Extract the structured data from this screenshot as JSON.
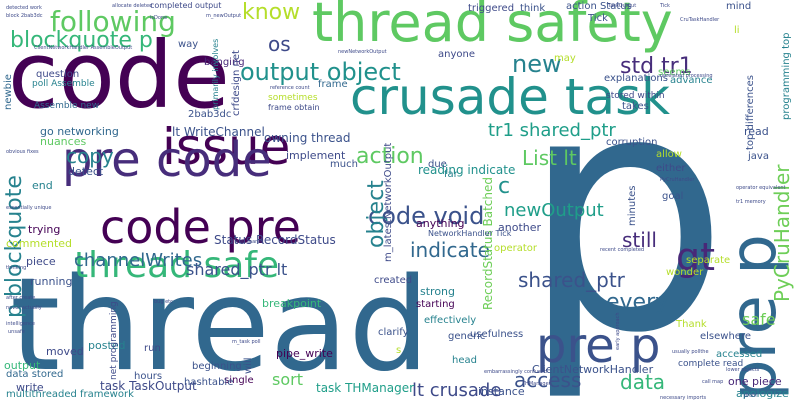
{
  "words": [
    {
      "id": "w-code",
      "text": "code",
      "color": "#440154"
    },
    {
      "id": "w-thread-safety",
      "text": "thread safety",
      "color": "#5ec962"
    },
    {
      "id": "w-crusade-task",
      "text": "crusade task",
      "color": "#21918c"
    },
    {
      "id": "w-p-big",
      "text": "p",
      "color": "#31688e"
    },
    {
      "id": "w-thread",
      "text": "thread",
      "color": "#31688e"
    },
    {
      "id": "w-issue",
      "text": "issue",
      "color": "#440154"
    },
    {
      "id": "w-pre-code",
      "text": "pre code",
      "color": "#472d7b"
    },
    {
      "id": "w-code-pre",
      "text": "code pre",
      "color": "#440154"
    },
    {
      "id": "w-thread-safe",
      "text": "thread safe",
      "color": "#35b779"
    },
    {
      "id": "w-pre-p-right",
      "text": "pre p",
      "color": "#3b528b"
    },
    {
      "id": "w-pre-p-vert",
      "text": "pre p",
      "color": "#31688e"
    },
    {
      "id": "w-gt",
      "text": "gt",
      "color": "#482878"
    },
    {
      "id": "w-output-object",
      "text": "output object",
      "color": "#21918c"
    },
    {
      "id": "w-following",
      "text": "following",
      "color": "#5ec962"
    },
    {
      "id": "w-blockquote-p",
      "text": "blockquote p",
      "color": "#35b779"
    },
    {
      "id": "w-p-blockquote",
      "text": "p blockquote",
      "color": "#26828e"
    },
    {
      "id": "w-know",
      "text": "know",
      "color": "#b5de2b"
    },
    {
      "id": "w-os",
      "text": "os",
      "color": "#3e4a89"
    },
    {
      "id": "w-new",
      "text": "new",
      "color": "#26828e"
    },
    {
      "id": "w-std-tr1",
      "text": "std tr1",
      "color": "#472d7b"
    },
    {
      "id": "w-copy",
      "text": "copy",
      "color": "#26828e"
    },
    {
      "id": "w-action",
      "text": "action",
      "color": "#5ec962"
    },
    {
      "id": "w-c",
      "text": "c",
      "color": "#21918c"
    },
    {
      "id": "w-list-lt",
      "text": "List lt",
      "color": "#5ec962"
    },
    {
      "id": "w-code-void",
      "text": "code void",
      "color": "#3b528b"
    },
    {
      "id": "w-object",
      "text": "object",
      "color": "#26828e"
    },
    {
      "id": "w-newoutput",
      "text": "newOutput",
      "color": "#1f9e89"
    },
    {
      "id": "w-tr1-shared",
      "text": "tr1 shared_ptr",
      "color": "#1f9e89"
    },
    {
      "id": "w-channelwrites",
      "text": "channelWrites",
      "color": "#31688e"
    },
    {
      "id": "w-indicate",
      "text": "indicate",
      "color": "#31688e"
    },
    {
      "id": "w-still",
      "text": "still",
      "color": "#472d7b"
    },
    {
      "id": "w-shared-ptr-lt",
      "text": "shared_ptr lt",
      "color": "#3b528b"
    },
    {
      "id": "w-shared-ptr",
      "text": "shared_ptr",
      "color": "#3b528b"
    },
    {
      "id": "w-every",
      "text": "every",
      "color": "#31688e"
    },
    {
      "id": "w-access",
      "text": "access",
      "color": "#3b528b"
    },
    {
      "id": "w-data",
      "text": "data",
      "color": "#35b779"
    },
    {
      "id": "w-lt-crusade",
      "text": "lt crusade",
      "color": "#3e4a89"
    },
    {
      "id": "w-pycruhandler",
      "text": "PyCruHandler",
      "color": "#6ece58"
    },
    {
      "id": "w-safe",
      "text": "safe",
      "color": "#6ece58"
    },
    {
      "id": "w-sort",
      "text": "sort",
      "color": "#5ec962"
    },
    {
      "id": "w-status-recordstatus",
      "text": "Status RecordStatus",
      "color": "#3e4a89"
    },
    {
      "id": "w-recordstatus-batched",
      "text": "RecordStatus Batched",
      "color": "#6ece58"
    },
    {
      "id": "w-owning-thread",
      "text": "owning thread",
      "color": "#3b528b"
    },
    {
      "id": "w-lt-writechannel",
      "text": "lt WriteChannel",
      "color": "#3b528b"
    },
    {
      "id": "w-task-taskoutput",
      "text": "task TaskOutput",
      "color": "#3e4a89"
    },
    {
      "id": "w-task-thmanager",
      "text": "task THManager",
      "color": "#1f9e89"
    },
    {
      "id": "w-clientnetworkhandler",
      "text": "ClientNetworkHandler",
      "color": "#3b528b"
    },
    {
      "id": "w-one-piece",
      "text": "one piece",
      "color": "#482878"
    },
    {
      "id": "w-apologize",
      "text": "apologize",
      "color": "#26828e"
    },
    {
      "id": "w-instance",
      "text": "instance",
      "color": "#3b528b"
    },
    {
      "id": "w-pipe-write",
      "text": "pipe_write",
      "color": "#440154"
    },
    {
      "id": "w-multithreaded",
      "text": "multithreaded framework",
      "color": "#26828e"
    },
    {
      "id": "w-data-stored",
      "text": "data stored",
      "color": "#31688e"
    },
    {
      "id": "w-write",
      "text": "write",
      "color": "#3e4a89"
    },
    {
      "id": "w-output-bottom",
      "text": "output",
      "color": "#35b779"
    },
    {
      "id": "w-posted",
      "text": "posted",
      "color": "#26828e"
    },
    {
      "id": "w-moved",
      "text": "moved",
      "color": "#3e4a89"
    },
    {
      "id": "w-running",
      "text": "running",
      "color": "#3b528b"
    },
    {
      "id": "w-piece",
      "text": "piece",
      "color": "#3e4a89"
    },
    {
      "id": "w-commented",
      "text": "commented",
      "color": "#b5de2b"
    },
    {
      "id": "w-trying",
      "text": "trying",
      "color": "#440154"
    },
    {
      "id": "w-end",
      "text": "end",
      "color": "#26828e"
    },
    {
      "id": "w-detect",
      "text": "detect",
      "color": "#3b528b"
    },
    {
      "id": "w-nuances",
      "text": "nuances",
      "color": "#5ec962"
    },
    {
      "id": "w-go-networking",
      "text": "go networking",
      "color": "#31688e"
    },
    {
      "id": "w-assemble-new",
      "text": "Assemble new",
      "color": "#31688e"
    },
    {
      "id": "w-poll-assemble",
      "text": "poll Assemble",
      "color": "#26828e"
    },
    {
      "id": "w-question",
      "text": "question",
      "color": "#3e4a89"
    },
    {
      "id": "w-newbie",
      "text": "newbie",
      "color": "#31688e"
    },
    {
      "id": "w-banging",
      "text": "banging",
      "color": "#482878"
    },
    {
      "id": "w-2bab3dc",
      "text": "2bab3dc",
      "color": "#3b528b"
    },
    {
      "id": "w-way",
      "text": "way",
      "color": "#3b528b"
    },
    {
      "id": "w-crfdesign-net",
      "text": "crfdesign net",
      "color": "#3e4a89"
    },
    {
      "id": "w-primarily-involves",
      "text": "primarily involves",
      "color": "#26828e"
    },
    {
      "id": "w-frame",
      "text": "frame",
      "color": "#31688e"
    },
    {
      "id": "w-sometimes",
      "text": "sometimes",
      "color": "#b5de2b"
    },
    {
      "id": "w-frame-obtain",
      "text": "frame obtain",
      "color": "#3e4a89"
    },
    {
      "id": "w-implement",
      "text": "implement",
      "color": "#3e4a89"
    },
    {
      "id": "w-much",
      "text": "much",
      "color": "#3b528b"
    },
    {
      "id": "w-reading-indicate",
      "text": "reading indicate",
      "color": "#21918c"
    },
    {
      "id": "w-due",
      "text": "due",
      "color": "#3b528b"
    },
    {
      "id": "w-far",
      "text": "far",
      "color": "#26828e"
    },
    {
      "id": "w-anything",
      "text": "anything",
      "color": "#440154"
    },
    {
      "id": "w-another",
      "text": "another",
      "color": "#3e4a89"
    },
    {
      "id": "w-operator",
      "text": "operator",
      "color": "#b5de2b"
    },
    {
      "id": "w-m-latestnetworkoutput",
      "text": "m_latestNetworkOutput",
      "color": "#3e4a89"
    },
    {
      "id": "w-networkhandler-tick",
      "text": "NetworkHandler Tick",
      "color": "#3b528b"
    },
    {
      "id": "w-breakpoint",
      "text": "breakpoint",
      "color": "#35b779"
    },
    {
      "id": "w-created",
      "text": "created",
      "color": "#3e4a89"
    },
    {
      "id": "w-strong",
      "text": "strong",
      "color": "#26828e"
    },
    {
      "id": "w-starting",
      "text": "starting",
      "color": "#440154"
    },
    {
      "id": "w-effectively",
      "text": "effectively",
      "color": "#26828e"
    },
    {
      "id": "w-clarify",
      "text": "clarify",
      "color": "#3b528b"
    },
    {
      "id": "w-generic",
      "text": "generic",
      "color": "#3b528b"
    },
    {
      "id": "w-usefulness",
      "text": "usefulness",
      "color": "#3b528b"
    },
    {
      "id": "w-head",
      "text": "head",
      "color": "#26828e"
    },
    {
      "id": "w-beginning",
      "text": "beginning",
      "color": "#3b528b"
    },
    {
      "id": "w-single",
      "text": "single",
      "color": "#440154"
    },
    {
      "id": "w-will",
      "text": "will",
      "color": "#3b528b"
    },
    {
      "id": "w-hours",
      "text": "hours",
      "color": "#3b528b"
    },
    {
      "id": "w-hashtable",
      "text": "hashtable",
      "color": "#3b528b"
    },
    {
      "id": "w-run",
      "text": "run",
      "color": "#3e4a89"
    },
    {
      "id": "w-net-programming",
      "text": "net programming",
      "color": "#3e4a89"
    },
    {
      "id": "w-s",
      "text": "s",
      "color": "#b5de2b"
    },
    {
      "id": "w-thank",
      "text": "Thank",
      "color": "#b5de2b"
    },
    {
      "id": "w-elsewhere",
      "text": "elsewhere",
      "color": "#3b528b"
    },
    {
      "id": "w-accessed",
      "text": "accessed",
      "color": "#26828e"
    },
    {
      "id": "w-complete-read",
      "text": "complete read",
      "color": "#3b528b"
    },
    {
      "id": "w-wonder",
      "text": "wonder",
      "color": "#b5de2b"
    },
    {
      "id": "w-separate",
      "text": "separate",
      "color": "#b5de2b"
    },
    {
      "id": "w-goal",
      "text": "goal",
      "color": "#3b528b"
    },
    {
      "id": "w-minutes",
      "text": "minutes",
      "color": "#3b528b"
    },
    {
      "id": "w-either",
      "text": "either",
      "color": "#3e4a89"
    },
    {
      "id": "w-allow",
      "text": "allow",
      "color": "#b5de2b"
    },
    {
      "id": "w-java",
      "text": "java",
      "color": "#3b528b"
    },
    {
      "id": "w-read",
      "text": "read",
      "color": "#3b528b"
    },
    {
      "id": "w-top-differences",
      "text": "top differences",
      "color": "#3b528b"
    },
    {
      "id": "w-programming-top",
      "text": "programming top",
      "color": "#26828e"
    },
    {
      "id": "w-takes",
      "text": "takes",
      "color": "#3b528b"
    },
    {
      "id": "w-advance",
      "text": "advance",
      "color": "#26828e"
    },
    {
      "id": "w-seems",
      "text": "seems",
      "color": "#5ec962"
    },
    {
      "id": "w-explanations",
      "text": "explanations",
      "color": "#3b528b"
    },
    {
      "id": "w-stored-within",
      "text": "stored within",
      "color": "#3e4a89"
    },
    {
      "id": "w-corruption",
      "text": "corruption",
      "color": "#3b528b"
    },
    {
      "id": "w-anyone",
      "text": "anyone",
      "color": "#3e4a89"
    },
    {
      "id": "w-may",
      "text": "may",
      "color": "#b5de2b"
    },
    {
      "id": "w-triggered",
      "text": "triggered",
      "color": "#3e4a89"
    },
    {
      "id": "w-think",
      "text": "think",
      "color": "#3b528b"
    },
    {
      "id": "w-action-status",
      "text": "action Status",
      "color": "#3b528b"
    },
    {
      "id": "w-tick",
      "text": "Tick",
      "color": "#3b528b"
    },
    {
      "id": "w-mind",
      "text": "mind",
      "color": "#3b528b"
    },
    {
      "id": "w-li",
      "text": "li",
      "color": "#b5de2b"
    },
    {
      "id": "w-completed-output",
      "text": "completed output",
      "color": "#3e4a89"
    },
    {
      "id": "w-m-newoutput",
      "text": "m_newOutput",
      "color": "#3e4a89"
    },
    {
      "id": "w-pipe-write-small",
      "text": "pipe_write",
      "color": "#3e4a89"
    },
    {
      "id": "w-block-bab",
      "text": "block 2bab3dc",
      "color": "#3e4a89"
    },
    {
      "id": "w-clientnetworkhandler-small",
      "text": "ClientNetworkHandler AssembleOutput",
      "color": "#3e4a89"
    },
    {
      "id": "w-detected-work",
      "text": "detected work",
      "color": "#3e4a89"
    },
    {
      "id": "w-allocate",
      "text": "allocate deleted",
      "color": "#3e4a89"
    },
    {
      "id": "w-isdone",
      "text": "isDone",
      "color": "#3e4a89"
    },
    {
      "id": "w-tick-small",
      "text": "Tick",
      "color": "#3e4a89"
    },
    {
      "id": "w-crutaskhandler",
      "text": "CruTaskHandler",
      "color": "#3e4a89"
    },
    {
      "id": "w-newnetwork-small",
      "text": "newNetworkOutput",
      "color": "#3e4a89"
    },
    {
      "id": "w-taskoutput-small",
      "text": "TaskOutput",
      "color": "#3e4a89"
    },
    {
      "id": "w-unrelated",
      "text": "unrelated processing",
      "color": "#3e4a89"
    },
    {
      "id": "w-pycruhandler-small",
      "text": "PyCruHandler",
      "color": "#3e4a89"
    },
    {
      "id": "w-tr1-memory",
      "text": "tr1 memory",
      "color": "#3e4a89"
    },
    {
      "id": "w-operator-small",
      "text": "operator equivalent",
      "color": "#3e4a89"
    },
    {
      "id": "w-necessary-imports",
      "text": "necessary imports",
      "color": "#3e4a89"
    },
    {
      "id": "w-early-approach",
      "text": "early approach",
      "color": "#3e4a89"
    },
    {
      "id": "w-recent-completed",
      "text": "recent completed",
      "color": "#3e4a89"
    },
    {
      "id": "w-thmanager-small",
      "text": "THManager",
      "color": "#3e4a89"
    },
    {
      "id": "w-call-map",
      "text": "call map",
      "color": "#3e4a89"
    },
    {
      "id": "w-lower-objects",
      "text": "lower objects",
      "color": "#3e4a89"
    },
    {
      "id": "w-usually",
      "text": "usually pollthe",
      "color": "#3e4a89"
    },
    {
      "id": "w-proof",
      "text": "proof",
      "color": "#3e4a89"
    },
    {
      "id": "w-embarrassingly",
      "text": "embarrassingly confused",
      "color": "#3e4a89"
    },
    {
      "id": "w-unsafe",
      "text": "unsafe",
      "color": "#3e4a89"
    },
    {
      "id": "w-intelligence",
      "text": "intelligence",
      "color": "#3e4a89"
    },
    {
      "id": "w-poll-small",
      "text": "m_task poll",
      "color": "#3e4a89"
    },
    {
      "id": "w-reference",
      "text": "reference count",
      "color": "#3e4a89"
    },
    {
      "id": "w-still-shared",
      "text": "still shared",
      "color": "#3e4a89"
    },
    {
      "id": "w-bug-etc",
      "text": "bug etc",
      "color": "#3e4a89"
    },
    {
      "id": "w-obvious-fixes",
      "text": "obvious fixes",
      "color": "#3e4a89"
    },
    {
      "id": "w-essentially",
      "text": "essentially unique",
      "color": "#3e4a89"
    },
    {
      "id": "w-after-create",
      "text": "after create",
      "color": "#3e4a89"
    },
    {
      "id": "w-never",
      "text": "never actually",
      "color": "#3e4a89"
    },
    {
      "id": "w-thinking",
      "text": "thinking",
      "color": "#3e4a89"
    }
  ]
}
